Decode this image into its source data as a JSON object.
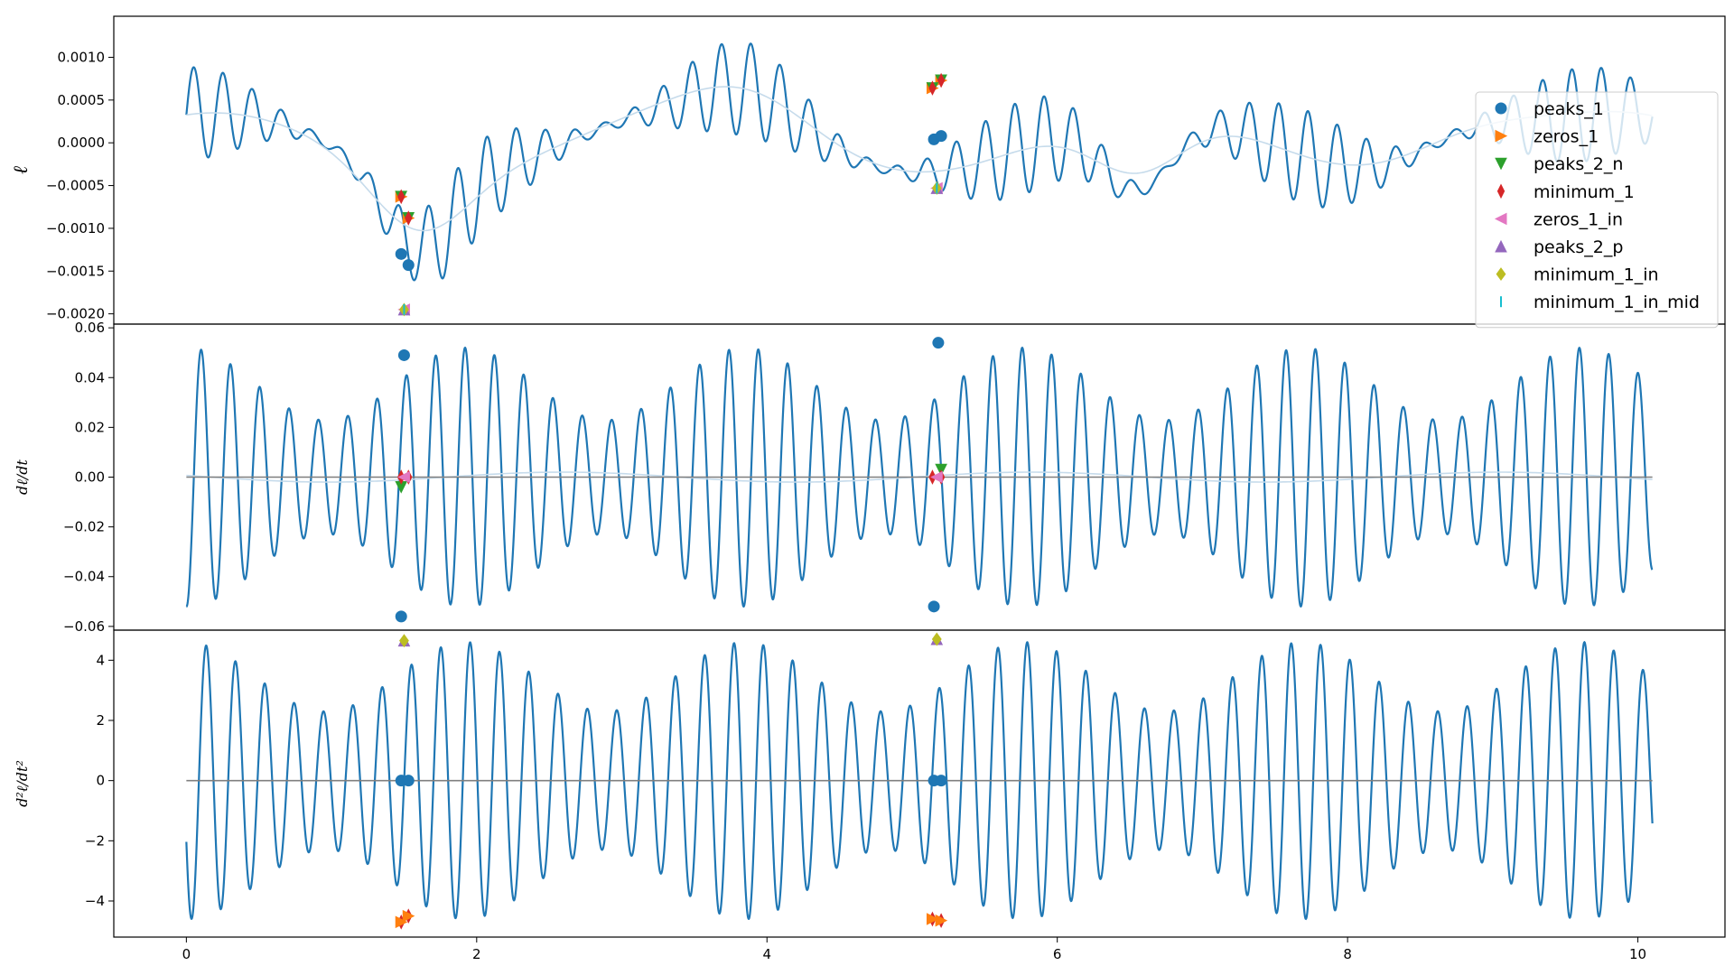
{
  "chart_data": [
    {
      "type": "line",
      "ylabel": "ℓ",
      "xlim": [
        -0.5,
        10.6
      ],
      "ylim": [
        -0.00212,
        0.00148
      ],
      "yticks": [
        0.001,
        0.0005,
        0.0,
        -0.0005,
        -0.001,
        -0.0015,
        -0.002
      ],
      "ytick_labels": [
        "0.0010",
        "0.0005",
        "0.0000",
        "−0.0005",
        "−0.0010",
        "−0.0015",
        "−0.0020"
      ],
      "grid": false,
      "colors": {
        "main": "#1f77b4",
        "envelope": "#c6dbeb"
      },
      "markers": [
        {
          "series": "peaks_1",
          "points": [
            [
              1.48,
              -0.0013
            ],
            [
              1.53,
              -0.00143
            ],
            [
              5.15,
              4e-05
            ],
            [
              5.2,
              8e-05
            ]
          ]
        },
        {
          "series": "zeros_1",
          "points": [
            [
              1.48,
              -0.00063
            ],
            [
              1.53,
              -0.00088
            ],
            [
              5.14,
              0.00064
            ],
            [
              5.2,
              0.00073
            ]
          ]
        },
        {
          "series": "peaks_2_n",
          "points": [
            [
              1.48,
              -0.00063
            ],
            [
              1.53,
              -0.00088
            ],
            [
              5.14,
              0.00064
            ],
            [
              5.2,
              0.00073
            ]
          ]
        },
        {
          "series": "minimum_1",
          "points": [
            [
              1.48,
              -0.00063
            ],
            [
              1.53,
              -0.00088
            ],
            [
              5.14,
              0.00064
            ],
            [
              5.2,
              0.00073
            ]
          ]
        },
        {
          "series": "zeros_1_in",
          "points": [
            [
              1.5,
              -0.00195
            ],
            [
              5.17,
              -0.00053
            ]
          ]
        },
        {
          "series": "peaks_2_p",
          "points": [
            [
              1.5,
              -0.00195
            ],
            [
              5.17,
              -0.00053
            ]
          ]
        },
        {
          "series": "minimum_1_in",
          "points": [
            [
              1.5,
              -0.00195
            ],
            [
              5.17,
              -0.00053
            ]
          ]
        },
        {
          "series": "minimum_1_in_mid",
          "points": [
            [
              1.5,
              -0.00195
            ],
            [
              5.17,
              -0.00053
            ]
          ]
        }
      ]
    },
    {
      "type": "line",
      "ylabel": "dℓ/dt",
      "xlim": [
        -0.5,
        10.6
      ],
      "ylim": [
        -0.0615,
        0.0615
      ],
      "yticks": [
        0.06,
        0.04,
        0.02,
        0.0,
        -0.02,
        -0.04,
        -0.06
      ],
      "ytick_labels": [
        "0.06",
        "0.04",
        "0.02",
        "0.00",
        "−0.02",
        "−0.04",
        "−0.06"
      ],
      "grid": false,
      "colors": {
        "main": "#1f77b4",
        "envelope": "#c6dbeb",
        "zero_line": "#7f7f7f"
      },
      "markers": [
        {
          "series": "peaks_1",
          "points": [
            [
              1.5,
              0.049
            ],
            [
              1.48,
              -0.056
            ],
            [
              5.18,
              0.054
            ],
            [
              5.15,
              -0.052
            ]
          ]
        },
        {
          "series": "peaks_2_n",
          "points": [
            [
              1.48,
              -0.004
            ],
            [
              5.2,
              0.003
            ]
          ]
        },
        {
          "series": "minimum_1",
          "points": [
            [
              1.48,
              0.0
            ],
            [
              1.53,
              0.0
            ],
            [
              5.14,
              0.0
            ],
            [
              5.2,
              0.0
            ]
          ]
        },
        {
          "series": "zeros_1_in",
          "points": [
            [
              1.5,
              0.0
            ],
            [
              5.17,
              0.0
            ]
          ]
        }
      ]
    },
    {
      "type": "line",
      "ylabel": "d²ℓ/dt²",
      "xlim": [
        -0.5,
        10.6
      ],
      "ylim": [
        -5.2,
        5.0
      ],
      "yticks": [
        4,
        2,
        0,
        -2,
        -4
      ],
      "ytick_labels": [
        "4",
        "2",
        "0",
        "−2",
        "−4"
      ],
      "xticks": [
        0,
        2,
        4,
        6,
        8,
        10
      ],
      "xtick_labels": [
        "0",
        "2",
        "4",
        "6",
        "8",
        "10"
      ],
      "grid": false,
      "colors": {
        "main": "#1f77b4",
        "zero_line": "#7f7f7f"
      },
      "markers": [
        {
          "series": "peaks_1",
          "points": [
            [
              1.48,
              0.0
            ],
            [
              1.53,
              0.0
            ],
            [
              5.15,
              0.0
            ],
            [
              5.2,
              0.0
            ]
          ]
        },
        {
          "series": "peaks_2_p",
          "points": [
            [
              1.5,
              4.65
            ],
            [
              5.17,
              4.7
            ]
          ]
        },
        {
          "series": "minimum_1_in",
          "points": [
            [
              1.5,
              4.65
            ],
            [
              5.17,
              4.7
            ]
          ]
        },
        {
          "series": "minimum_1",
          "points": [
            [
              1.48,
              -4.7
            ],
            [
              1.53,
              -4.5
            ],
            [
              5.14,
              -4.6
            ],
            [
              5.2,
              -4.65
            ]
          ]
        },
        {
          "series": "zeros_1",
          "points": [
            [
              1.48,
              -4.7
            ],
            [
              1.53,
              -4.5
            ],
            [
              5.14,
              -4.6
            ],
            [
              5.2,
              -4.65
            ]
          ]
        }
      ]
    }
  ],
  "legend": {
    "placement": "right",
    "entries": [
      {
        "name": "peaks_1",
        "marker": "circle",
        "color": "#1f77b4"
      },
      {
        "name": "zeros_1",
        "marker": "triangle-right",
        "color": "#ff7f0e"
      },
      {
        "name": "peaks_2_n",
        "marker": "triangle-down",
        "color": "#2ca02c"
      },
      {
        "name": "minimum_1",
        "marker": "thin-diamond",
        "color": "#d62728"
      },
      {
        "name": "zeros_1_in",
        "marker": "triangle-left",
        "color": "#e377c2"
      },
      {
        "name": "peaks_2_p",
        "marker": "triangle-up",
        "color": "#9467bd"
      },
      {
        "name": "minimum_1_in",
        "marker": "diamond",
        "color": "#bcbd22"
      },
      {
        "name": "minimum_1_in_mid",
        "marker": "vline",
        "color": "#17becf"
      }
    ]
  }
}
